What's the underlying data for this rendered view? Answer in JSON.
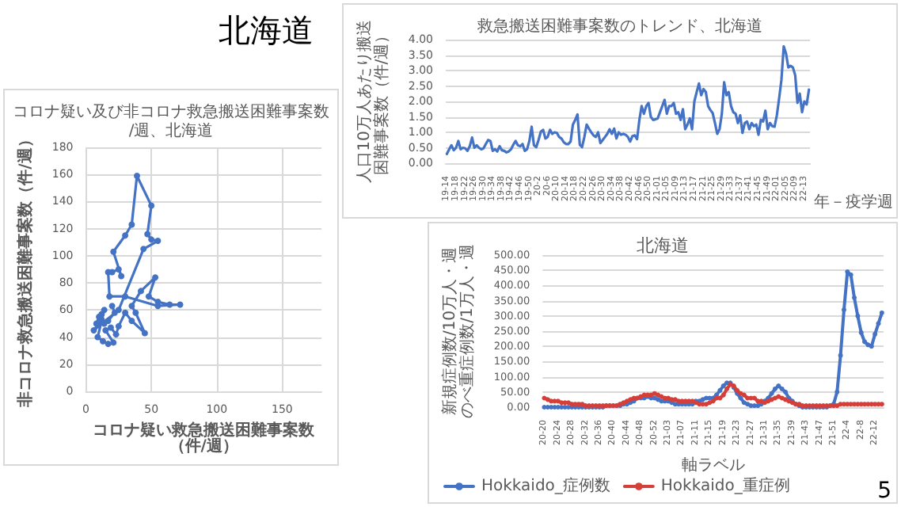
{
  "chart_data": [
    {
      "type": "line",
      "title": "コロナ疑い及び非コロナ救急搬送困難事案数/週、北海道",
      "xlabel": "コロナ疑い救急搬送困難事案数（件/週）",
      "ylabel": "非コロナ救急搬送困難事案数（件/週）",
      "annotations": [
        "北海道",
        "5"
      ],
      "x": [
        20,
        22,
        17,
        14,
        8,
        10,
        12,
        14,
        9,
        13,
        17,
        21,
        15,
        19,
        23,
        25,
        30,
        35,
        45,
        38,
        35,
        42,
        53,
        48,
        55,
        64,
        72,
        55,
        30,
        18,
        17,
        20,
        25,
        27,
        21,
        30,
        35,
        39,
        50,
        47,
        50,
        55,
        44,
        25,
        6,
        12
      ],
      "values": [
        63,
        58,
        52,
        50,
        50,
        55,
        57,
        60,
        40,
        37,
        35,
        36,
        45,
        47,
        42,
        48,
        58,
        52,
        43,
        58,
        63,
        74,
        84,
        70,
        66,
        64,
        64,
        63,
        70,
        70,
        88,
        88,
        90,
        85,
        103,
        115,
        123,
        159,
        137,
        116,
        112,
        111,
        105,
        60,
        45,
        53
      ],
      "color": "#4472c4",
      "marker": "circle",
      "xlim": [
        0,
        180
      ],
      "xticks": [
        0,
        50,
        100,
        150
      ],
      "ylim": [
        0,
        180
      ],
      "yticks": [
        0,
        20,
        40,
        60,
        80,
        100,
        120,
        140,
        160,
        180
      ],
      "grid": true
    },
    {
      "type": "line",
      "title": "救急搬送困難事案数のトレンド、北海道",
      "xlabel": "年－疫学週",
      "ylabel": "人口10万人あたり搬送困難事案数（件/週）",
      "categories": [
        "19-14",
        null,
        null,
        null,
        "19-18",
        null,
        null,
        null,
        "19-22",
        null,
        null,
        null,
        "19-26",
        null,
        null,
        null,
        "19-30",
        null,
        null,
        null,
        "19-34",
        null,
        null,
        null,
        "19-38",
        null,
        null,
        null,
        "19-42",
        null,
        null,
        null,
        "19-46",
        null,
        null,
        null,
        "19-50",
        null,
        null,
        null,
        "20-2",
        null,
        null,
        null,
        "20-6",
        null,
        null,
        null,
        "20-10",
        null,
        null,
        null,
        "20-14",
        null,
        null,
        null,
        "20-18",
        null,
        null,
        null,
        "20-22",
        null,
        null,
        null,
        "20-26",
        null,
        null,
        null,
        "20-30",
        null,
        null,
        null,
        "20-34",
        null,
        null,
        null,
        "20-38",
        null,
        null,
        null,
        "20-42",
        null,
        null,
        null,
        "20-46",
        null,
        null,
        null,
        "20-50",
        null,
        null,
        null,
        "21-01",
        null,
        null,
        null,
        "21-05",
        null,
        null,
        null,
        "21-09",
        null,
        null,
        null,
        "21-13",
        null,
        null,
        null,
        "21-17",
        null,
        null,
        null,
        "21-21",
        null,
        null,
        null,
        "21-25",
        null,
        null,
        null,
        "21-29",
        null,
        null,
        null,
        "21-33",
        null,
        null,
        null,
        "21-37",
        null,
        null,
        null,
        "21-41",
        null,
        null,
        null,
        "21-45",
        null,
        null,
        null,
        "21-49",
        null,
        null,
        null,
        "22-01",
        null,
        null,
        null,
        "22-05",
        null,
        null,
        null,
        "22-09",
        null,
        null,
        null,
        "22-13",
        null,
        null
      ],
      "values": [
        0.3,
        0.45,
        0.58,
        0.42,
        0.5,
        0.72,
        0.45,
        0.5,
        0.48,
        0.4,
        0.55,
        0.83,
        0.5,
        0.58,
        0.5,
        0.45,
        0.48,
        0.62,
        0.75,
        0.72,
        0.4,
        0.45,
        0.38,
        0.55,
        0.42,
        0.4,
        0.35,
        0.38,
        0.45,
        0.6,
        0.72,
        0.58,
        0.55,
        0.62,
        0.4,
        0.45,
        0.72,
        1.18,
        0.58,
        0.52,
        0.75,
        1.02,
        1.08,
        0.8,
        0.85,
        1.08,
        0.95,
        1.0,
        0.98,
        0.85,
        0.8,
        0.68,
        0.62,
        0.62,
        0.7,
        1.25,
        1.4,
        1.58,
        0.6,
        0.52,
        0.85,
        1.25,
        1.12,
        1.0,
        0.9,
        0.85,
        1.0,
        0.65,
        0.75,
        0.85,
        0.95,
        1.1,
        0.95,
        1.12,
        0.8,
        1.0,
        0.92,
        0.95,
        0.92,
        0.85,
        0.7,
        0.88,
        0.9,
        0.78,
        1.4,
        1.85,
        1.6,
        1.85,
        1.95,
        1.5,
        1.4,
        1.42,
        1.45,
        1.65,
        1.85,
        2.05,
        1.6,
        1.85,
        1.85,
        1.95,
        1.6,
        1.65,
        1.4,
        1.75,
        1.1,
        1.25,
        1.45,
        1.1,
        2.0,
        2.3,
        2.58,
        2.2,
        2.4,
        2.3,
        1.85,
        1.72,
        1.62,
        1.3,
        0.95,
        1.1,
        1.6,
        2.62,
        2.2,
        2.3,
        1.85,
        1.65,
        1.6,
        1.3,
        1.55,
        0.98,
        1.3,
        1.35,
        1.1,
        1.3,
        1.2,
        1.25,
        0.92,
        1.4,
        1.35,
        1.7,
        1.1,
        1.3,
        1.2,
        1.18,
        1.55,
        2.1,
        2.7,
        3.78,
        3.55,
        3.1,
        3.15,
        3.1,
        2.85,
        1.95,
        2.25,
        1.65,
        2.0,
        1.9,
        2.38
      ],
      "color": "#4472c4",
      "ylim": [
        0,
        4
      ],
      "yticks": [
        {
          "value": 0,
          "label": "0.00"
        },
        {
          "value": 0.5,
          "label": "0.50"
        },
        {
          "value": 1,
          "label": "1.00"
        },
        {
          "value": 1.5,
          "label": "1.50"
        },
        {
          "value": 2,
          "label": "2.00"
        },
        {
          "value": 2.5,
          "label": "2.50"
        },
        {
          "value": 3,
          "label": "3.00"
        },
        {
          "value": 3.5,
          "label": "3.50"
        },
        {
          "value": 4,
          "label": "4.00"
        }
      ],
      "grid": "y"
    },
    {
      "type": "line",
      "title": "北海道",
      "xlabel": "軸ラベル",
      "ylabel": "新規症例数/10万人・週のべ重症例数/1万人・週",
      "categories": [
        "20-20",
        null,
        null,
        null,
        "20-24",
        null,
        null,
        null,
        "20-28",
        null,
        null,
        null,
        "20-32",
        null,
        null,
        null,
        "20-36",
        null,
        null,
        null,
        "20-40",
        null,
        null,
        null,
        "20-44",
        null,
        null,
        null,
        "20-48",
        null,
        null,
        null,
        "20-52",
        null,
        null,
        null,
        "21-03",
        null,
        null,
        null,
        "21-07",
        null,
        null,
        null,
        "21-11",
        null,
        null,
        null,
        "21-15",
        null,
        null,
        null,
        "21-19",
        null,
        null,
        null,
        "21-23",
        null,
        null,
        null,
        "21-27",
        null,
        null,
        null,
        "21-31",
        null,
        null,
        null,
        "21-35",
        null,
        null,
        null,
        "21-39",
        null,
        null,
        null,
        "21-43",
        null,
        null,
        null,
        "21-47",
        null,
        null,
        null,
        "21-51",
        null,
        null,
        null,
        "22-4",
        null,
        null,
        null,
        "22-8",
        null,
        null,
        null,
        "22-12",
        null,
        null
      ],
      "series": [
        {
          "name": "Hokkaido_症例数",
          "color": "#4472c4",
          "values": [
            0,
            0,
            0,
            0,
            0,
            0,
            0,
            0,
            0,
            0,
            0,
            0,
            0,
            0,
            0,
            0,
            0,
            0,
            5,
            5,
            5,
            5,
            5,
            10,
            10,
            15,
            20,
            30,
            30,
            30,
            35,
            30,
            30,
            25,
            20,
            20,
            20,
            15,
            10,
            10,
            10,
            10,
            10,
            10,
            20,
            20,
            25,
            30,
            30,
            30,
            40,
            55,
            70,
            80,
            80,
            65,
            45,
            30,
            15,
            10,
            5,
            5,
            5,
            10,
            20,
            30,
            45,
            60,
            70,
            60,
            50,
            30,
            20,
            10,
            5,
            0,
            0,
            0,
            0,
            0,
            0,
            0,
            0,
            5,
            10,
            50,
            170,
            320,
            445,
            435,
            360,
            300,
            245,
            215,
            205,
            200,
            240,
            275,
            310
          ]
        },
        {
          "name": "Hokkaido_重症例",
          "color": "#d43f3a",
          "values": [
            30,
            25,
            20,
            20,
            20,
            15,
            15,
            15,
            10,
            10,
            10,
            10,
            5,
            5,
            5,
            5,
            5,
            5,
            5,
            5,
            5,
            5,
            10,
            15,
            20,
            25,
            30,
            30,
            35,
            40,
            40,
            40,
            45,
            40,
            35,
            30,
            30,
            25,
            25,
            20,
            20,
            20,
            20,
            20,
            15,
            10,
            10,
            10,
            15,
            20,
            30,
            30,
            40,
            60,
            75,
            70,
            55,
            45,
            40,
            30,
            30,
            30,
            20,
            20,
            15,
            20,
            25,
            30,
            35,
            30,
            25,
            20,
            15,
            10,
            10,
            5,
            5,
            5,
            5,
            5,
            5,
            5,
            5,
            5,
            5,
            5,
            10,
            10,
            10,
            10,
            10,
            10,
            10,
            10,
            10,
            10,
            10,
            10,
            10
          ]
        }
      ],
      "marker": "circle",
      "legend": "bottom",
      "ylim": [
        0,
        500
      ],
      "yticks": [
        {
          "value": 0,
          "label": "0.00"
        },
        {
          "value": 50,
          "label": "50.00"
        },
        {
          "value": 100,
          "label": "100.00"
        },
        {
          "value": 150,
          "label": "150.00"
        },
        {
          "value": 200,
          "label": "200.00"
        },
        {
          "value": 250,
          "label": "250.00"
        },
        {
          "value": 300,
          "label": "300.00"
        },
        {
          "value": 350,
          "label": "350.00"
        },
        {
          "value": 400,
          "label": "400.00"
        },
        {
          "value": 450,
          "label": "450.00"
        },
        {
          "value": 500,
          "label": "500.00"
        }
      ],
      "grid": "y"
    }
  ]
}
